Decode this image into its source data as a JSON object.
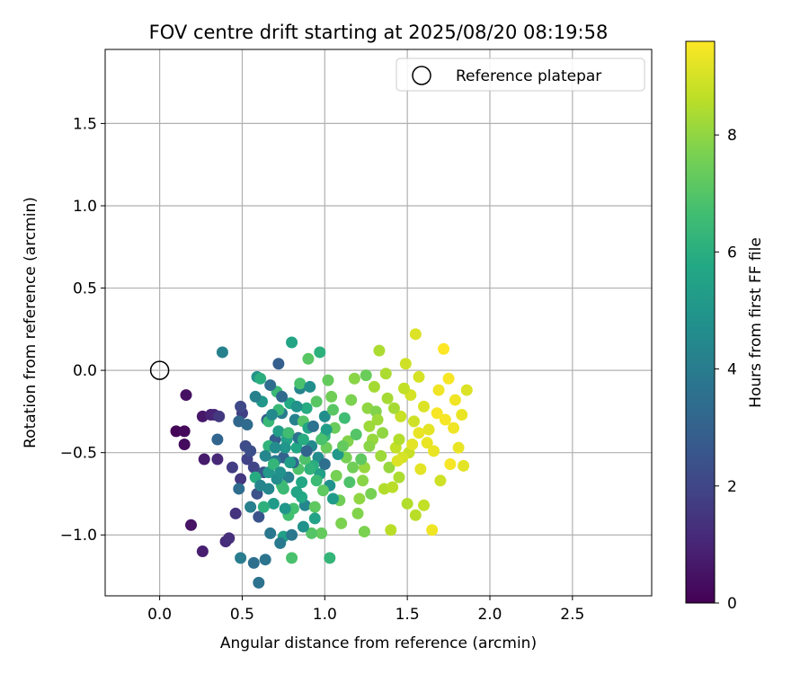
{
  "chart_data": {
    "type": "scatter",
    "title": "FOV centre drift starting at 2025/08/20 08:19:58",
    "xlabel": "Angular distance from reference (arcmin)",
    "ylabel": "Rotation from reference (arcmin)",
    "xlim": [
      -0.33,
      2.98
    ],
    "ylim": [
      -1.37,
      1.95
    ],
    "x_ticks": [
      0.0,
      0.5,
      1.0,
      1.5,
      2.0,
      2.5
    ],
    "x_tick_labels": [
      "0.0",
      "0.5",
      "1.0",
      "1.5",
      "2.0",
      "2.5"
    ],
    "y_ticks": [
      -1.0,
      -0.5,
      0.0,
      0.5,
      1.0,
      1.5
    ],
    "y_tick_labels": [
      "−1.0",
      "−0.5",
      "0.0",
      "0.5",
      "1.0",
      "1.5"
    ],
    "grid": true,
    "legend": {
      "placement": "upper-right",
      "entries": [
        {
          "label": "Reference platepar",
          "marker": "open-circle"
        }
      ]
    },
    "reference_point": {
      "x": 0.0,
      "y": 0.0
    },
    "colorbar": {
      "label": "Hours from first FF file",
      "colormap": "viridis",
      "range": [
        0,
        9.6
      ],
      "ticks": [
        0,
        2,
        4,
        6,
        8
      ],
      "tick_labels": [
        "0",
        "2",
        "4",
        "6",
        "8"
      ]
    },
    "points": [
      [
        0.1,
        -0.37,
        0.1
      ],
      [
        0.15,
        -0.37,
        0.2
      ],
      [
        0.15,
        -0.45,
        0.3
      ],
      [
        0.16,
        -0.15,
        0.4
      ],
      [
        0.19,
        -0.94,
        0.5
      ],
      [
        0.26,
        -0.28,
        0.6
      ],
      [
        0.27,
        -0.54,
        0.7
      ],
      [
        0.26,
        -1.1,
        0.8
      ],
      [
        0.31,
        -0.27,
        0.9
      ],
      [
        0.33,
        -0.27,
        1.0
      ],
      [
        0.35,
        -0.54,
        1.1
      ],
      [
        0.4,
        -1.04,
        1.2
      ],
      [
        0.42,
        -1.02,
        1.3
      ],
      [
        0.46,
        -0.87,
        1.4
      ],
      [
        0.49,
        -0.66,
        1.5
      ],
      [
        0.36,
        -0.28,
        1.6
      ],
      [
        0.44,
        -0.59,
        1.7
      ],
      [
        0.5,
        -0.26,
        1.8
      ],
      [
        0.53,
        -0.54,
        1.9
      ],
      [
        0.57,
        -0.59,
        2.0
      ],
      [
        0.49,
        -0.22,
        2.1
      ],
      [
        0.52,
        -0.46,
        2.2
      ],
      [
        0.55,
        -0.49,
        2.3
      ],
      [
        0.59,
        -0.75,
        2.4
      ],
      [
        0.6,
        -0.89,
        2.5
      ],
      [
        0.63,
        -0.62,
        2.6
      ],
      [
        0.65,
        -0.3,
        2.7
      ],
      [
        0.7,
        -0.42,
        2.8
      ],
      [
        0.72,
        0.04,
        2.9
      ],
      [
        0.75,
        -0.53,
        3.0
      ],
      [
        0.35,
        -0.42,
        3.1
      ],
      [
        0.48,
        -0.31,
        3.2
      ],
      [
        0.53,
        -0.33,
        3.3
      ],
      [
        0.48,
        -0.72,
        3.4
      ],
      [
        0.57,
        -1.17,
        3.5
      ],
      [
        0.6,
        -1.29,
        3.6
      ],
      [
        0.64,
        -1.15,
        3.7
      ],
      [
        0.67,
        -0.99,
        3.8
      ],
      [
        0.7,
        -0.55,
        3.9
      ],
      [
        0.74,
        -0.26,
        4.0
      ],
      [
        0.78,
        -0.65,
        4.1
      ],
      [
        0.82,
        -0.3,
        4.2
      ],
      [
        0.85,
        -0.11,
        4.3
      ],
      [
        0.88,
        -0.82,
        4.4
      ],
      [
        0.92,
        -0.46,
        4.5
      ],
      [
        0.38,
        0.11,
        4.2
      ],
      [
        0.49,
        -1.14,
        4.0
      ],
      [
        0.96,
        -0.53,
        4.6
      ],
      [
        1.0,
        -0.28,
        4.7
      ],
      [
        1.03,
        -0.7,
        4.8
      ],
      [
        0.59,
        -0.04,
        4.9
      ],
      [
        0.62,
        -0.19,
        5.0
      ],
      [
        0.66,
        -0.62,
        5.1
      ],
      [
        0.69,
        -0.81,
        5.2
      ],
      [
        0.72,
        -0.37,
        5.3
      ],
      [
        0.75,
        -1.01,
        5.4
      ],
      [
        0.77,
        -0.42,
        5.5
      ],
      [
        0.8,
        0.17,
        5.6
      ],
      [
        0.83,
        -0.47,
        5.7
      ],
      [
        0.86,
        -0.77,
        5.8
      ],
      [
        0.89,
        -0.23,
        5.9
      ],
      [
        0.93,
        -0.58,
        6.0
      ],
      [
        0.97,
        0.11,
        6.1
      ],
      [
        1.0,
        -0.4,
        6.2
      ],
      [
        1.03,
        -1.14,
        6.3
      ],
      [
        0.66,
        -0.31,
        6.4
      ],
      [
        0.71,
        -0.13,
        6.5
      ],
      [
        0.74,
        -0.7,
        6.6
      ],
      [
        0.78,
        -0.88,
        6.7
      ],
      [
        0.8,
        -1.14,
        6.8
      ],
      [
        0.84,
        -0.6,
        6.9
      ],
      [
        0.87,
        -0.31,
        7.0
      ],
      [
        0.9,
        0.07,
        7.1
      ],
      [
        0.94,
        -0.83,
        7.2
      ],
      [
        0.98,
        -0.99,
        7.3
      ],
      [
        1.01,
        -0.47,
        7.4
      ],
      [
        1.04,
        -0.16,
        7.5
      ],
      [
        1.07,
        -0.64,
        7.6
      ],
      [
        1.1,
        -0.93,
        7.7
      ],
      [
        1.14,
        -0.43,
        7.8
      ],
      [
        1.18,
        -0.05,
        7.9
      ],
      [
        1.21,
        -0.78,
        8.0
      ],
      [
        1.24,
        -0.59,
        8.1
      ],
      [
        1.27,
        -0.34,
        8.2
      ],
      [
        1.3,
        -0.1,
        8.3
      ],
      [
        1.33,
        0.12,
        8.4
      ],
      [
        1.36,
        -0.72,
        8.5
      ],
      [
        1.4,
        -0.97,
        8.6
      ],
      [
        1.43,
        -0.47,
        8.7
      ],
      [
        1.46,
        -0.28,
        8.8
      ],
      [
        1.49,
        0.04,
        8.9
      ],
      [
        1.52,
        -0.15,
        9.0
      ],
      [
        1.55,
        0.22,
        9.1
      ],
      [
        1.58,
        -0.6,
        9.2
      ],
      [
        1.62,
        -0.44,
        9.3
      ],
      [
        1.65,
        -0.97,
        9.4
      ],
      [
        1.68,
        -0.26,
        9.5
      ],
      [
        1.72,
        0.13,
        9.6
      ],
      [
        1.75,
        -0.05,
        9.5
      ],
      [
        1.78,
        -0.35,
        9.4
      ],
      [
        1.81,
        -0.47,
        9.3
      ],
      [
        1.84,
        -0.58,
        9.2
      ],
      [
        1.86,
        -0.12,
        9.1
      ],
      [
        1.7,
        -0.67,
        8.9
      ],
      [
        1.6,
        -0.82,
        8.7
      ],
      [
        1.55,
        -0.88,
        8.6
      ],
      [
        1.5,
        -0.81,
        8.5
      ],
      [
        1.45,
        -0.65,
        8.4
      ],
      [
        1.38,
        -0.17,
        8.3
      ],
      [
        1.34,
        -0.52,
        8.2
      ],
      [
        1.29,
        -0.42,
        8.1
      ],
      [
        1.26,
        -0.23,
        8.0
      ],
      [
        1.23,
        -0.67,
        7.9
      ],
      [
        1.2,
        -0.87,
        7.8
      ],
      [
        1.16,
        -0.18,
        7.7
      ],
      [
        1.13,
        -0.53,
        7.6
      ],
      [
        1.09,
        -0.79,
        7.5
      ],
      [
        1.06,
        -0.35,
        7.4
      ],
      [
        1.02,
        -0.06,
        7.3
      ],
      [
        0.99,
        -0.73,
        7.2
      ],
      [
        0.95,
        -0.19,
        7.1
      ],
      [
        0.92,
        -0.99,
        7.0
      ],
      [
        0.88,
        -0.54,
        6.9
      ],
      [
        0.85,
        -0.08,
        6.8
      ],
      [
        0.81,
        -0.84,
        6.7
      ],
      [
        0.78,
        -0.38,
        6.6
      ],
      [
        0.75,
        -0.72,
        6.5
      ],
      [
        0.72,
        -0.24,
        6.4
      ],
      [
        0.69,
        -0.57,
        6.3
      ],
      [
        0.66,
        -0.46,
        6.2
      ],
      [
        0.63,
        -0.83,
        6.1
      ],
      [
        0.61,
        -0.05,
        6.0
      ],
      [
        0.58,
        -0.65,
        5.9
      ],
      [
        0.79,
        -0.2,
        5.8
      ],
      [
        0.86,
        -0.68,
        5.7
      ],
      [
        0.9,
        -0.35,
        5.6
      ],
      [
        0.94,
        -0.9,
        5.5
      ],
      [
        0.97,
        -0.63,
        5.4
      ],
      [
        1.01,
        -0.36,
        5.3
      ],
      [
        1.05,
        -0.78,
        5.2
      ],
      [
        1.08,
        -0.51,
        5.1
      ],
      [
        0.76,
        -0.47,
        5.0
      ],
      [
        0.83,
        -0.22,
        4.9
      ],
      [
        0.87,
        -0.95,
        4.8
      ],
      [
        0.91,
        -0.1,
        4.7
      ],
      [
        0.71,
        -0.66,
        4.6
      ],
      [
        0.68,
        -0.27,
        4.5
      ],
      [
        0.64,
        -0.52,
        4.4
      ],
      [
        0.61,
        -0.7,
        4.3
      ],
      [
        0.58,
        -0.16,
        4.2
      ],
      [
        0.55,
        -0.83,
        4.1
      ],
      [
        0.73,
        -1.05,
        3.9
      ],
      [
        0.8,
        -1.0,
        3.8
      ],
      [
        0.84,
        -0.41,
        3.7
      ],
      [
        0.93,
        -0.34,
        3.6
      ],
      [
        1.0,
        -0.57,
        3.5
      ],
      [
        0.67,
        -0.09,
        3.4
      ],
      [
        0.74,
        -0.16,
        3.3
      ],
      [
        0.81,
        -0.56,
        3.2
      ],
      [
        0.89,
        -0.49,
        3.1
      ],
      [
        1.12,
        -0.29,
        6.6
      ],
      [
        1.15,
        -0.68,
        6.9
      ],
      [
        1.19,
        -0.39,
        7.0
      ],
      [
        1.22,
        -0.54,
        7.2
      ],
      [
        1.25,
        -0.03,
        7.4
      ],
      [
        1.28,
        -0.75,
        7.6
      ],
      [
        1.31,
        -0.25,
        7.8
      ],
      [
        1.35,
        -0.38,
        8.0
      ],
      [
        1.39,
        -0.59,
        8.1
      ],
      [
        1.42,
        -0.23,
        8.3
      ],
      [
        1.45,
        -0.42,
        8.5
      ],
      [
        1.48,
        -0.11,
        8.7
      ],
      [
        1.51,
        -0.5,
        8.8
      ],
      [
        1.54,
        -0.31,
        8.9
      ],
      [
        1.57,
        -0.04,
        9.0
      ],
      [
        1.6,
        -0.22,
        9.1
      ],
      [
        1.63,
        -0.36,
        9.2
      ],
      [
        1.66,
        -0.49,
        9.3
      ],
      [
        1.69,
        -0.12,
        9.4
      ],
      [
        1.73,
        -0.3,
        9.5
      ],
      [
        1.76,
        -0.57,
        9.5
      ],
      [
        1.79,
        -0.18,
        9.4
      ],
      [
        1.83,
        -0.27,
        9.3
      ],
      [
        1.47,
        -0.53,
        9.0
      ],
      [
        1.53,
        -0.45,
        9.2
      ],
      [
        1.57,
        -0.38,
        9.3
      ],
      [
        1.44,
        -0.55,
        9.1
      ],
      [
        1.41,
        -0.71,
        8.6
      ],
      [
        1.37,
        -0.02,
        8.4
      ],
      [
        1.32,
        -0.3,
        8.2
      ],
      [
        1.27,
        -0.46,
        7.9
      ],
      [
        1.24,
        -0.98,
        7.7
      ],
      [
        1.17,
        -0.59,
        7.5
      ],
      [
        1.11,
        -0.46,
        7.3
      ],
      [
        1.05,
        -0.24,
        7.1
      ],
      [
        0.98,
        -0.42,
        6.8
      ],
      [
        0.95,
        -0.67,
        6.5
      ],
      [
        0.91,
        -0.6,
        6.2
      ],
      [
        0.87,
        -0.42,
        5.9
      ],
      [
        0.83,
        -0.74,
        5.6
      ],
      [
        0.79,
        -0.56,
        5.3
      ],
      [
        0.76,
        -0.84,
        5.0
      ],
      [
        0.73,
        -0.62,
        4.8
      ],
      [
        0.7,
        -0.47,
        4.6
      ],
      [
        0.66,
        -0.72,
        4.4
      ]
    ]
  }
}
